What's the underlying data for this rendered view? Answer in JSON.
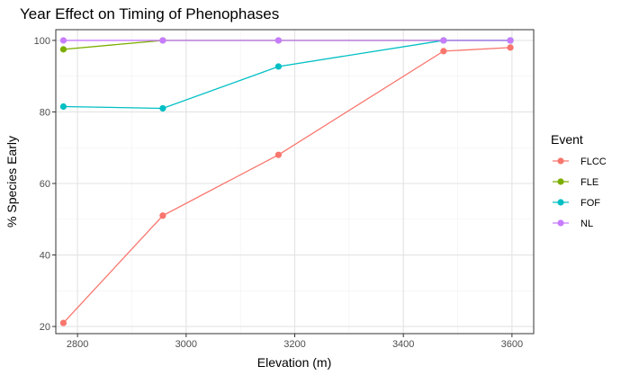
{
  "chart_data": {
    "type": "line",
    "title": "Year Effect on Timing of Phenophases",
    "xlabel": "Elevation (m)",
    "ylabel": "% Species Early",
    "xlim": [
      2760,
      3640
    ],
    "ylim": [
      18,
      103
    ],
    "x_ticks": [
      2800,
      3000,
      3200,
      3400,
      3600
    ],
    "y_ticks": [
      20,
      40,
      60,
      80,
      100
    ],
    "grid": true,
    "legend": {
      "title": "Event",
      "position": "right"
    },
    "x": [
      2774,
      2957,
      3170,
      3474,
      3597
    ],
    "series": [
      {
        "name": "FLCC",
        "color": "#F8766D",
        "values": [
          21,
          51,
          68,
          97,
          98
        ]
      },
      {
        "name": "FLE",
        "color": "#7CAE00",
        "values": [
          97.5,
          100,
          100,
          100,
          100
        ]
      },
      {
        "name": "FOF",
        "color": "#00BFC4",
        "values": [
          81.5,
          81,
          92.7,
          100,
          100
        ]
      },
      {
        "name": "NL",
        "color": "#C77CFF",
        "values": [
          100,
          100,
          100,
          100,
          100
        ]
      }
    ]
  }
}
